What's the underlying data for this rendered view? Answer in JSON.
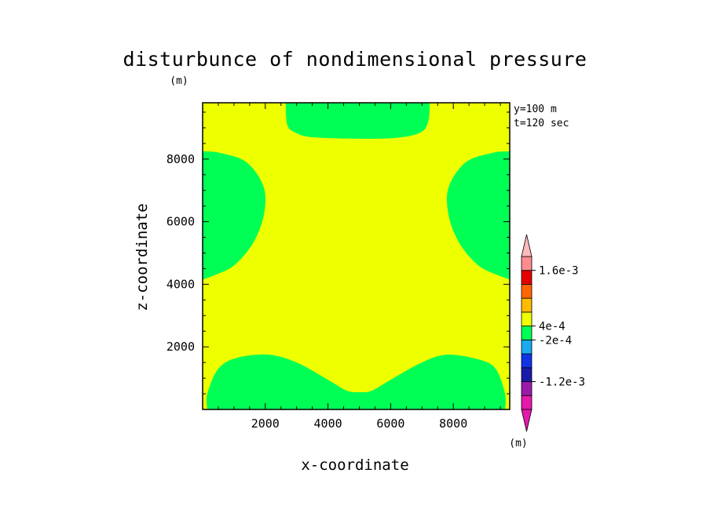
{
  "chart_data": {
    "type": "heatmap",
    "title": "disturbunce of nondimensional pressure",
    "xlabel": "x-coordinate",
    "ylabel": "z-coordinate",
    "y_unit": "(m)",
    "colorbar_unit": "(m)",
    "info": [
      "y=100 m",
      "t=120 sec"
    ],
    "xlim": [
      0,
      9800
    ],
    "ylim": [
      0,
      9800
    ],
    "x_ticks": [
      2000,
      4000,
      6000,
      8000
    ],
    "y_ticks": [
      2000,
      4000,
      6000,
      8000
    ],
    "x_tick_labels": [
      "2000",
      "4000",
      "6000",
      "8000"
    ],
    "y_tick_labels": [
      "2000",
      "4000",
      "6000",
      "8000"
    ],
    "x_minor_step": 500,
    "y_minor_step": 500,
    "background_level_color": "#eeff00",
    "region_color": "#00ff55",
    "regions": [
      {
        "name": "top-center",
        "points": [
          [
            2650,
            9800
          ],
          [
            2700,
            9100
          ],
          [
            2950,
            8850
          ],
          [
            3500,
            8700
          ],
          [
            5000,
            8650
          ],
          [
            6200,
            8680
          ],
          [
            6950,
            8850
          ],
          [
            7200,
            9200
          ],
          [
            7250,
            9800
          ]
        ]
      },
      {
        "name": "left-mid",
        "points": [
          [
            0,
            8250
          ],
          [
            550,
            8200
          ],
          [
            1400,
            7900
          ],
          [
            1950,
            7100
          ],
          [
            1950,
            6200
          ],
          [
            1600,
            5300
          ],
          [
            1000,
            4600
          ],
          [
            400,
            4300
          ],
          [
            0,
            4150
          ]
        ]
      },
      {
        "name": "right-mid",
        "points": [
          [
            9800,
            8250
          ],
          [
            9250,
            8200
          ],
          [
            8400,
            7900
          ],
          [
            7850,
            7100
          ],
          [
            7850,
            6200
          ],
          [
            8200,
            5300
          ],
          [
            8800,
            4600
          ],
          [
            9400,
            4300
          ],
          [
            9800,
            4150
          ]
        ]
      },
      {
        "name": "bottom",
        "points": [
          [
            150,
            0
          ],
          [
            150,
            500
          ],
          [
            500,
            1300
          ],
          [
            1100,
            1650
          ],
          [
            2100,
            1750
          ],
          [
            3000,
            1500
          ],
          [
            4000,
            950
          ],
          [
            4600,
            600
          ],
          [
            5000,
            550
          ],
          [
            5400,
            600
          ],
          [
            6000,
            950
          ],
          [
            7000,
            1500
          ],
          [
            7800,
            1750
          ],
          [
            8800,
            1600
          ],
          [
            9350,
            1300
          ],
          [
            9650,
            500
          ],
          [
            9650,
            0
          ]
        ]
      }
    ],
    "colorbar": {
      "colors": [
        "#e51aaa",
        "#9b1aaa",
        "#1a1aaa",
        "#1133e6",
        "#1aaaee",
        "#00ff55",
        "#eeff00",
        "#ffbb00",
        "#ff6600",
        "#e60000",
        "#ff8c8c"
      ],
      "extend_low_color": "#e51aaa",
      "extend_high_color": "#ffbbbb",
      "labels": [
        {
          "text": "-1.2e-3",
          "boundary": 2
        },
        {
          "text": "-2e-4",
          "boundary": 5
        },
        {
          "text": "4e-4",
          "boundary": 6
        },
        {
          "text": "1.6e-3",
          "boundary": 10
        }
      ]
    }
  }
}
